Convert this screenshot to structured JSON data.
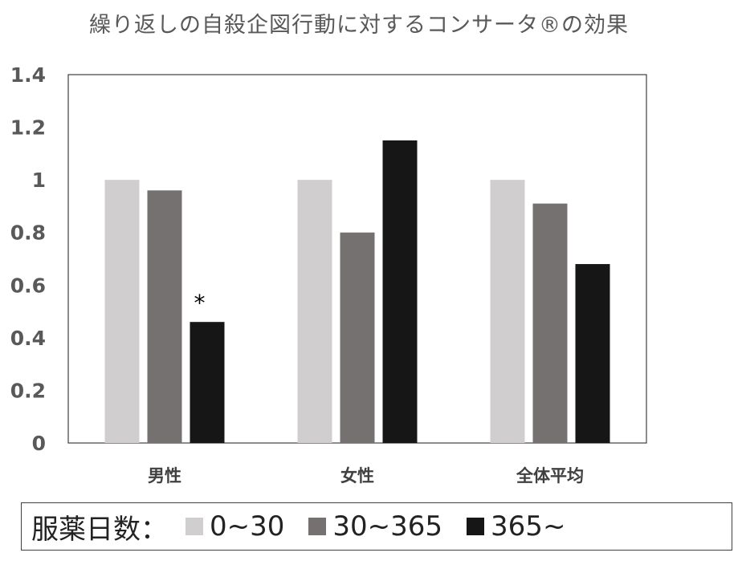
{
  "colors": {
    "series_0": "#d0cece",
    "series_1": "#767171",
    "series_2": "#161616",
    "axis": "#404040"
  },
  "legend": {
    "title": "服薬日数：",
    "entries": [
      "0~30",
      "30~365",
      "365~"
    ]
  },
  "chart_data": {
    "type": "bar",
    "title": "繰り返しの自殺企図行動に対するコンサータ®の効果",
    "xlabel": "",
    "ylabel": "",
    "categories": [
      "男性",
      "女性",
      "全体平均"
    ],
    "series": [
      {
        "name": "0~30",
        "values": [
          1.0,
          1.0,
          1.0
        ]
      },
      {
        "name": "30~365",
        "values": [
          0.96,
          0.8,
          0.91
        ]
      },
      {
        "name": "365~",
        "values": [
          0.46,
          1.15,
          0.68
        ]
      }
    ],
    "ylim": [
      0,
      1.4
    ],
    "yticks": [
      0,
      0.2,
      0.4,
      0.6,
      0.8,
      1,
      1.2,
      1.4
    ],
    "ytick_labels": [
      "0",
      "0.2",
      "0.4",
      "0.6",
      "0.8",
      "1",
      "1.2",
      "1.4"
    ],
    "grid": false,
    "legend_position": "bottom",
    "annotations": [
      {
        "text": "*",
        "category_index": 0,
        "series_index": 2
      }
    ]
  }
}
